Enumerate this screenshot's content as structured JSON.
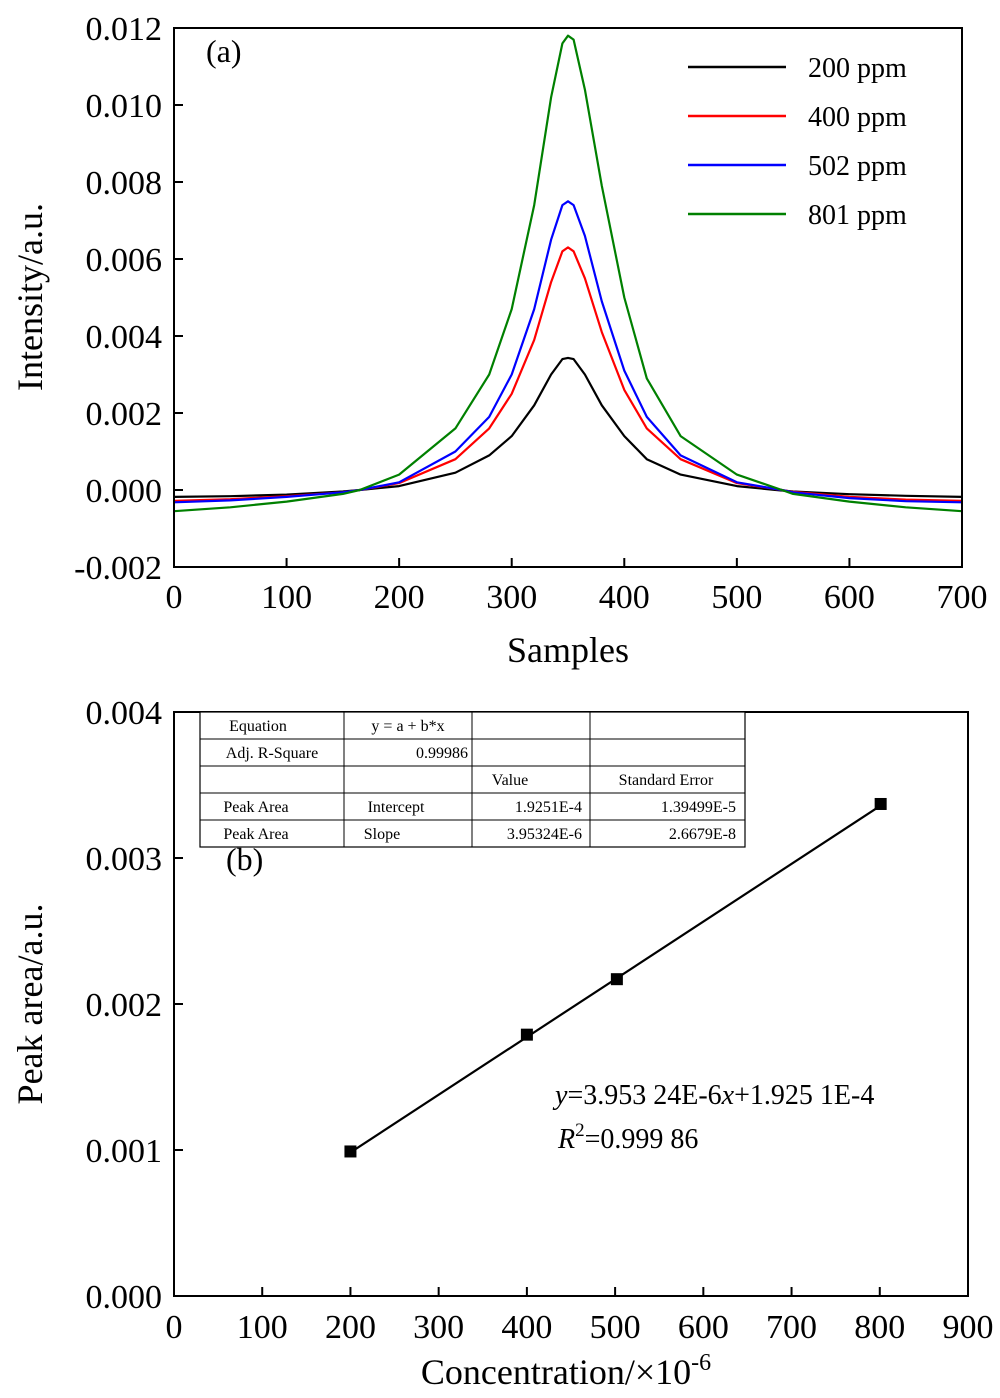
{
  "chart_data": [
    {
      "type": "line",
      "panel_label": "(a)",
      "xlabel": "Samples",
      "ylabel": "Intensity/a.u.",
      "xlim": [
        0,
        700
      ],
      "ylim": [
        -0.002,
        0.012
      ],
      "xticks": [
        "0",
        "100",
        "200",
        "300",
        "400",
        "500",
        "600",
        "700"
      ],
      "yticks": [
        "-0.002",
        "0.000",
        "0.002",
        "0.004",
        "0.006",
        "0.008",
        "0.010",
        "0.012"
      ],
      "legend_position": "top-right",
      "series": [
        {
          "name": "200 ppm",
          "color": "#000000",
          "x": [
            0,
            50,
            100,
            150,
            165,
            200,
            250,
            280,
            300,
            320,
            335,
            345,
            350,
            355,
            365,
            380,
            400,
            420,
            450,
            500,
            535,
            550,
            600,
            650,
            700
          ],
          "y": [
            -0.00018,
            -0.00016,
            -0.00012,
            -4e-05,
            0.0,
            0.0001,
            0.00045,
            0.0009,
            0.0014,
            0.0022,
            0.003,
            0.0034,
            0.00343,
            0.0034,
            0.003,
            0.0022,
            0.0014,
            0.0008,
            0.0004,
            0.0001,
            0.0,
            -4e-05,
            -0.00011,
            -0.00015,
            -0.00018
          ]
        },
        {
          "name": "400 ppm",
          "color": "#ff0000",
          "x": [
            0,
            50,
            100,
            150,
            165,
            200,
            250,
            280,
            300,
            320,
            335,
            345,
            350,
            355,
            365,
            380,
            400,
            420,
            450,
            500,
            540,
            550,
            600,
            650,
            700
          ],
          "y": [
            -0.00028,
            -0.00024,
            -0.00016,
            -6e-05,
            0.0,
            0.00018,
            0.0008,
            0.0016,
            0.0025,
            0.0039,
            0.0054,
            0.0062,
            0.0063,
            0.0062,
            0.0055,
            0.0041,
            0.0026,
            0.0016,
            0.0008,
            0.00018,
            0.0,
            -5e-05,
            -0.00018,
            -0.00025,
            -0.00028
          ]
        },
        {
          "name": "502 ppm",
          "color": "#0000ff",
          "x": [
            0,
            50,
            100,
            150,
            165,
            200,
            250,
            280,
            300,
            320,
            335,
            345,
            350,
            355,
            365,
            380,
            400,
            420,
            450,
            500,
            540,
            550,
            600,
            650,
            700
          ],
          "y": [
            -0.00032,
            -0.00027,
            -0.00018,
            -6e-05,
            0.0,
            0.0002,
            0.001,
            0.0019,
            0.003,
            0.0047,
            0.0065,
            0.0074,
            0.0075,
            0.0074,
            0.0066,
            0.0049,
            0.0031,
            0.0019,
            0.0009,
            0.0002,
            0.0,
            -6e-05,
            -0.00021,
            -0.00029,
            -0.00032
          ]
        },
        {
          "name": "801 ppm",
          "color": "#008000",
          "x": [
            0,
            50,
            100,
            150,
            165,
            200,
            250,
            280,
            300,
            320,
            335,
            345,
            350,
            355,
            365,
            380,
            400,
            420,
            450,
            500,
            540,
            550,
            600,
            650,
            700
          ],
          "y": [
            -0.00055,
            -0.00045,
            -0.0003,
            -0.0001,
            0.0,
            0.0004,
            0.0016,
            0.003,
            0.0047,
            0.0074,
            0.0102,
            0.0116,
            0.0118,
            0.0117,
            0.0104,
            0.0079,
            0.005,
            0.0029,
            0.0014,
            0.0004,
            0.0,
            -0.0001,
            -0.0003,
            -0.00045,
            -0.00055
          ]
        }
      ]
    },
    {
      "type": "scatter",
      "panel_label": "(b)",
      "xlabel": "Concentration/×10",
      "xlabel_sup": "-6",
      "ylabel": "Peak area/a.u.",
      "xlim": [
        0,
        900
      ],
      "ylim": [
        0.0,
        0.004
      ],
      "xticks": [
        "0",
        "100",
        "200",
        "300",
        "400",
        "500",
        "600",
        "700",
        "800",
        "900"
      ],
      "yticks": [
        "0.000",
        "0.001",
        "0.002",
        "0.003",
        "0.004"
      ],
      "points": {
        "x": [
          200,
          400,
          502,
          801
        ],
        "y": [
          0.00099,
          0.00179,
          0.00217,
          0.00337
        ]
      },
      "fit": {
        "intercept": 0.00019251,
        "slope": 3.95324e-06,
        "x_range": [
          200,
          801
        ]
      },
      "equation": {
        "y_var": "y",
        "text": "=3.953 24E-6",
        "x_var": "x",
        "tail": "+1.925 1E-4"
      },
      "r2": {
        "r_var": "R",
        "sup": "2",
        "value": "=0.999 86"
      },
      "fit_table": {
        "rows": [
          [
            "Equation",
            "y = a + b*x",
            "",
            ""
          ],
          [
            "Adj. R-Square",
            "0.99986",
            "",
            ""
          ],
          [
            "",
            "",
            "Value",
            "Standard Error"
          ],
          [
            "Peak Area",
            "Intercept",
            "1.9251E-4",
            "1.39499E-5"
          ],
          [
            "Peak Area",
            "Slope",
            "3.95324E-6",
            "2.6679E-8"
          ]
        ]
      }
    }
  ]
}
